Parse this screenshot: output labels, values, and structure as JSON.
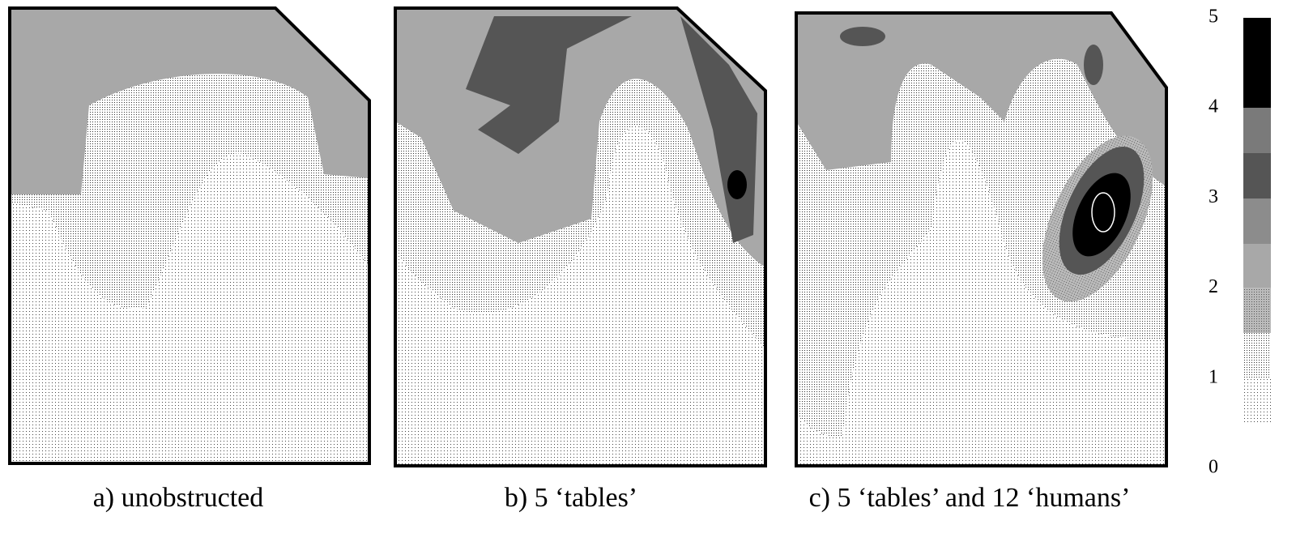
{
  "panels": [
    {
      "caption": "a) unobstructed"
    },
    {
      "caption": "b) 5 ‘tables’"
    },
    {
      "caption": "c) 5 ‘tables’ and 12 ‘humans’"
    }
  ],
  "colorbar": {
    "ticks": [
      0,
      1,
      2,
      3,
      4,
      5
    ]
  }
}
